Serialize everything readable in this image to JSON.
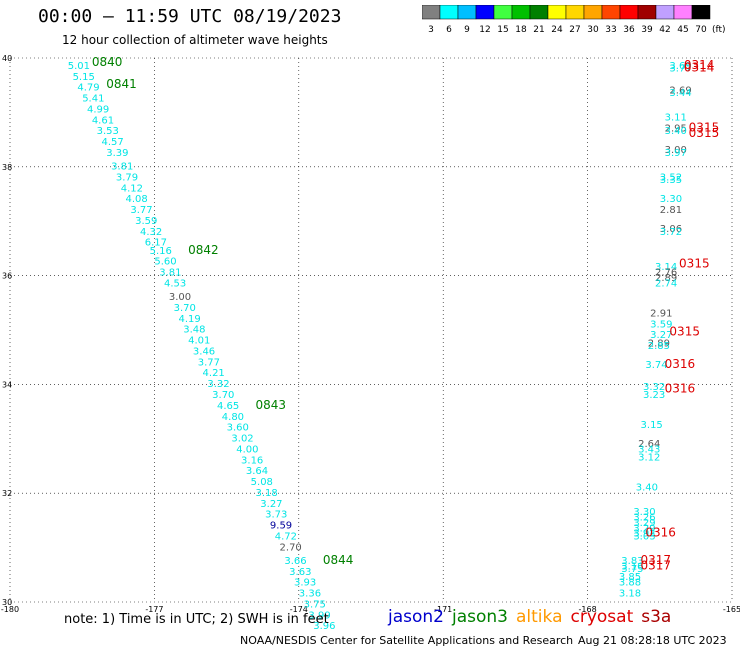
{
  "title": "00:00 – 11:59 UTC 08/19/2023",
  "subtitle": "12 hour collection of altimeter wave heights",
  "colorbar": {
    "labels": [
      "3",
      "6",
      "9",
      "12",
      "15",
      "18",
      "21",
      "24",
      "27",
      "30",
      "33",
      "36",
      "39",
      "42",
      "45",
      "70"
    ],
    "unit": "(ft)",
    "colors": [
      "#808080",
      "#00ffff",
      "#00bfff",
      "#0000ff",
      "#40ff40",
      "#00c000",
      "#008000",
      "#ffff00",
      "#ffd700",
      "#ffa500",
      "#ff4500",
      "#ff0000",
      "#a00000",
      "#c0a0ff",
      "#ff80ff",
      "#000000"
    ]
  },
  "footnote": "note:  1) Time is in UTC; 2) SWH is in feet",
  "satellites": [
    {
      "name": "jason2",
      "color": "#0000cc"
    },
    {
      "name": "jason3",
      "color": "#008000"
    },
    {
      "name": "altika",
      "color": "#ff9900"
    },
    {
      "name": "cryosat",
      "color": "#dd0000"
    },
    {
      "name": "s3a",
      "color": "#aa0000"
    }
  ],
  "credit": "NOAA/NESDIS Center for Satellite Applications and Research",
  "timestamp": "Aug 21 08:28:18 UTC 2023",
  "chart_data": {
    "type": "scatter",
    "xlim": [
      -180,
      -165
    ],
    "ylim": [
      30,
      40
    ],
    "xticks": [
      "-180",
      "-177",
      "-174",
      "-171",
      "-168",
      "-165"
    ],
    "yticks": [
      "30",
      "32",
      "34",
      "36",
      "38",
      "40"
    ],
    "grid": true,
    "colors": {
      "swh_cyan": "#00e5e5",
      "swh_gray": "#555555",
      "swh_blue": "#000099",
      "time_green": "#008000",
      "time_red": "#dd0000"
    },
    "swh_points": [
      {
        "lon": -178.8,
        "lat": 39.8,
        "v": "5.01",
        "c": "swh_cyan"
      },
      {
        "lon": -178.7,
        "lat": 39.6,
        "v": "5.15",
        "c": "swh_cyan"
      },
      {
        "lon": -178.6,
        "lat": 39.4,
        "v": "4.79",
        "c": "swh_cyan"
      },
      {
        "lon": -178.5,
        "lat": 39.2,
        "v": "5.41",
        "c": "swh_cyan"
      },
      {
        "lon": -178.4,
        "lat": 39.0,
        "v": "4.99",
        "c": "swh_cyan"
      },
      {
        "lon": -178.3,
        "lat": 38.8,
        "v": "4.61",
        "c": "swh_cyan"
      },
      {
        "lon": -178.2,
        "lat": 38.6,
        "v": "3.53",
        "c": "swh_cyan"
      },
      {
        "lon": -178.1,
        "lat": 38.4,
        "v": "4.57",
        "c": "swh_cyan"
      },
      {
        "lon": -178.0,
        "lat": 38.2,
        "v": "3.39",
        "c": "swh_cyan"
      },
      {
        "lon": -177.9,
        "lat": 37.95,
        "v": "3.81",
        "c": "swh_cyan"
      },
      {
        "lon": -177.8,
        "lat": 37.75,
        "v": "3.79",
        "c": "swh_cyan"
      },
      {
        "lon": -177.7,
        "lat": 37.55,
        "v": "4.12",
        "c": "swh_cyan"
      },
      {
        "lon": -177.6,
        "lat": 37.35,
        "v": "4.08",
        "c": "swh_cyan"
      },
      {
        "lon": -177.5,
        "lat": 37.15,
        "v": "3.77",
        "c": "swh_cyan"
      },
      {
        "lon": -177.4,
        "lat": 36.95,
        "v": "3.59",
        "c": "swh_cyan"
      },
      {
        "lon": -177.3,
        "lat": 36.75,
        "v": "4.32",
        "c": "swh_cyan"
      },
      {
        "lon": -177.2,
        "lat": 36.55,
        "v": "6.17",
        "c": "swh_cyan"
      },
      {
        "lon": -177.1,
        "lat": 36.4,
        "v": "5.16",
        "c": "swh_cyan"
      },
      {
        "lon": -177.0,
        "lat": 36.2,
        "v": "5.60",
        "c": "swh_cyan"
      },
      {
        "lon": -176.9,
        "lat": 36.0,
        "v": "3.81",
        "c": "swh_cyan"
      },
      {
        "lon": -176.8,
        "lat": 35.8,
        "v": "4.53",
        "c": "swh_cyan"
      },
      {
        "lon": -176.7,
        "lat": 35.55,
        "v": "3.00",
        "c": "swh_gray"
      },
      {
        "lon": -176.6,
        "lat": 35.35,
        "v": "3.70",
        "c": "swh_cyan"
      },
      {
        "lon": -176.5,
        "lat": 35.15,
        "v": "4.19",
        "c": "swh_cyan"
      },
      {
        "lon": -176.4,
        "lat": 34.95,
        "v": "3.48",
        "c": "swh_cyan"
      },
      {
        "lon": -176.3,
        "lat": 34.75,
        "v": "4.01",
        "c": "swh_cyan"
      },
      {
        "lon": -176.2,
        "lat": 34.55,
        "v": "3.46",
        "c": "swh_cyan"
      },
      {
        "lon": -176.1,
        "lat": 34.35,
        "v": "3.77",
        "c": "swh_cyan"
      },
      {
        "lon": -176.0,
        "lat": 34.15,
        "v": "4.21",
        "c": "swh_cyan"
      },
      {
        "lon": -175.9,
        "lat": 33.95,
        "v": "3.32",
        "c": "swh_cyan"
      },
      {
        "lon": -175.8,
        "lat": 33.75,
        "v": "3.70",
        "c": "swh_cyan"
      },
      {
        "lon": -175.7,
        "lat": 33.55,
        "v": "4.65",
        "c": "swh_cyan"
      },
      {
        "lon": -175.6,
        "lat": 33.35,
        "v": "4.80",
        "c": "swh_cyan"
      },
      {
        "lon": -175.5,
        "lat": 33.15,
        "v": "3.60",
        "c": "swh_cyan"
      },
      {
        "lon": -175.4,
        "lat": 32.95,
        "v": "3.02",
        "c": "swh_cyan"
      },
      {
        "lon": -175.3,
        "lat": 32.75,
        "v": "4.00",
        "c": "swh_cyan"
      },
      {
        "lon": -175.2,
        "lat": 32.55,
        "v": "3.16",
        "c": "swh_cyan"
      },
      {
        "lon": -175.1,
        "lat": 32.35,
        "v": "3.64",
        "c": "swh_cyan"
      },
      {
        "lon": -175.0,
        "lat": 32.15,
        "v": "5.08",
        "c": "swh_cyan"
      },
      {
        "lon": -174.9,
        "lat": 31.95,
        "v": "3.18",
        "c": "swh_cyan"
      },
      {
        "lon": -174.8,
        "lat": 31.75,
        "v": "3.27",
        "c": "swh_cyan"
      },
      {
        "lon": -174.7,
        "lat": 31.55,
        "v": "3.73",
        "c": "swh_cyan"
      },
      {
        "lon": -174.6,
        "lat": 31.35,
        "v": "9.59",
        "c": "swh_blue"
      },
      {
        "lon": -174.5,
        "lat": 31.15,
        "v": "4.72",
        "c": "swh_cyan"
      },
      {
        "lon": -174.4,
        "lat": 30.95,
        "v": "2.70",
        "c": "swh_gray"
      },
      {
        "lon": -174.3,
        "lat": 30.7,
        "v": "3.66",
        "c": "swh_cyan"
      },
      {
        "lon": -174.2,
        "lat": 30.5,
        "v": "3.63",
        "c": "swh_cyan"
      },
      {
        "lon": -174.1,
        "lat": 30.3,
        "v": "3.93",
        "c": "swh_cyan"
      },
      {
        "lon": -174.0,
        "lat": 30.1,
        "v": "3.36",
        "c": "swh_cyan"
      },
      {
        "lon": -173.9,
        "lat": 29.9,
        "v": "3.75",
        "c": "swh_cyan"
      },
      {
        "lon": -173.8,
        "lat": 29.7,
        "v": "3.99",
        "c": "swh_cyan"
      },
      {
        "lon": -173.7,
        "lat": 29.5,
        "v": "3.96",
        "c": "swh_cyan"
      },
      {
        "lon": -166.3,
        "lat": 39.8,
        "v": "3.69",
        "c": "swh_cyan"
      },
      {
        "lon": -166.3,
        "lat": 39.75,
        "v": "3.77",
        "c": "swh_cyan"
      },
      {
        "lon": -166.3,
        "lat": 39.35,
        "v": "2.69",
        "c": "swh_gray"
      },
      {
        "lon": -166.3,
        "lat": 39.3,
        "v": "3.44",
        "c": "swh_cyan"
      },
      {
        "lon": -166.4,
        "lat": 38.85,
        "v": "3.11",
        "c": "swh_cyan"
      },
      {
        "lon": -166.4,
        "lat": 38.65,
        "v": "2.95",
        "c": "swh_gray"
      },
      {
        "lon": -166.4,
        "lat": 38.6,
        "v": "3.40",
        "c": "swh_cyan"
      },
      {
        "lon": -166.4,
        "lat": 38.25,
        "v": "3.00",
        "c": "swh_gray"
      },
      {
        "lon": -166.4,
        "lat": 38.2,
        "v": "3.97",
        "c": "swh_cyan"
      },
      {
        "lon": -166.5,
        "lat": 37.75,
        "v": "3.52",
        "c": "swh_cyan"
      },
      {
        "lon": -166.5,
        "lat": 37.7,
        "v": "3.35",
        "c": "swh_cyan"
      },
      {
        "lon": -166.5,
        "lat": 37.35,
        "v": "3.30",
        "c": "swh_cyan"
      },
      {
        "lon": -166.5,
        "lat": 37.15,
        "v": "2.81",
        "c": "swh_gray"
      },
      {
        "lon": -166.5,
        "lat": 36.8,
        "v": "3.06",
        "c": "swh_gray"
      },
      {
        "lon": -166.5,
        "lat": 36.75,
        "v": "3.72",
        "c": "swh_cyan"
      },
      {
        "lon": -166.6,
        "lat": 36.1,
        "v": "3.14",
        "c": "swh_cyan"
      },
      {
        "lon": -166.6,
        "lat": 36.0,
        "v": "2.76",
        "c": "swh_gray"
      },
      {
        "lon": -166.6,
        "lat": 35.9,
        "v": "2.89",
        "c": "swh_gray"
      },
      {
        "lon": -166.6,
        "lat": 35.8,
        "v": "2.74",
        "c": "swh_cyan"
      },
      {
        "lon": -166.7,
        "lat": 35.25,
        "v": "2.91",
        "c": "swh_gray"
      },
      {
        "lon": -166.7,
        "lat": 35.05,
        "v": "3.59",
        "c": "swh_cyan"
      },
      {
        "lon": -166.7,
        "lat": 34.85,
        "v": "3.27",
        "c": "swh_cyan"
      },
      {
        "lon": -166.75,
        "lat": 34.7,
        "v": "2.89",
        "c": "swh_gray"
      },
      {
        "lon": -166.75,
        "lat": 34.65,
        "v": "2.85",
        "c": "swh_cyan"
      },
      {
        "lon": -166.8,
        "lat": 34.3,
        "v": "3.74",
        "c": "swh_cyan"
      },
      {
        "lon": -166.85,
        "lat": 33.9,
        "v": "3.32",
        "c": "swh_cyan"
      },
      {
        "lon": -166.85,
        "lat": 33.75,
        "v": "3.23",
        "c": "swh_cyan"
      },
      {
        "lon": -166.9,
        "lat": 33.2,
        "v": "3.15",
        "c": "swh_cyan"
      },
      {
        "lon": -166.95,
        "lat": 32.85,
        "v": "2.64",
        "c": "swh_gray"
      },
      {
        "lon": -166.95,
        "lat": 32.75,
        "v": "3.43",
        "c": "swh_cyan"
      },
      {
        "lon": -166.95,
        "lat": 32.6,
        "v": "3.12",
        "c": "swh_cyan"
      },
      {
        "lon": -167.0,
        "lat": 32.05,
        "v": "3.40",
        "c": "swh_cyan"
      },
      {
        "lon": -167.05,
        "lat": 31.6,
        "v": "3.30",
        "c": "swh_cyan"
      },
      {
        "lon": -167.05,
        "lat": 31.5,
        "v": "3.26",
        "c": "swh_cyan"
      },
      {
        "lon": -167.05,
        "lat": 31.4,
        "v": "3.29",
        "c": "swh_cyan"
      },
      {
        "lon": -167.05,
        "lat": 31.3,
        "v": "3.29",
        "c": "swh_cyan"
      },
      {
        "lon": -167.05,
        "lat": 31.2,
        "v": "3.92",
        "c": "swh_cyan"
      },
      {
        "lon": -167.05,
        "lat": 31.15,
        "v": "3.03",
        "c": "swh_cyan"
      },
      {
        "lon": -167.3,
        "lat": 30.7,
        "v": "3.83",
        "c": "swh_cyan"
      },
      {
        "lon": -167.3,
        "lat": 30.6,
        "v": "3.16",
        "c": "swh_cyan"
      },
      {
        "lon": -167.3,
        "lat": 30.55,
        "v": "3.75",
        "c": "swh_cyan"
      },
      {
        "lon": -167.35,
        "lat": 30.4,
        "v": "3.85",
        "c": "swh_cyan"
      },
      {
        "lon": -167.35,
        "lat": 30.3,
        "v": "3.88",
        "c": "swh_cyan"
      },
      {
        "lon": -167.35,
        "lat": 30.1,
        "v": "3.18",
        "c": "swh_cyan"
      }
    ],
    "time_labels": [
      {
        "lon": -178.3,
        "lat": 39.85,
        "t": "0840",
        "c": "time_green"
      },
      {
        "lon": -178.0,
        "lat": 39.45,
        "t": "0841",
        "c": "time_green"
      },
      {
        "lon": -176.3,
        "lat": 36.4,
        "t": "0842",
        "c": "time_green"
      },
      {
        "lon": -174.9,
        "lat": 33.55,
        "t": "0843",
        "c": "time_green"
      },
      {
        "lon": -173.5,
        "lat": 30.7,
        "t": "0844",
        "c": "time_green"
      },
      {
        "lon": -166.0,
        "lat": 39.8,
        "t": "0314",
        "c": "time_red"
      },
      {
        "lon": -166.0,
        "lat": 39.75,
        "t": "0314",
        "c": "time_red"
      },
      {
        "lon": -165.9,
        "lat": 38.65,
        "t": "0315",
        "c": "time_red"
      },
      {
        "lon": -165.9,
        "lat": 38.55,
        "t": "0315",
        "c": "time_red"
      },
      {
        "lon": -166.1,
        "lat": 36.15,
        "t": "0315",
        "c": "time_red"
      },
      {
        "lon": -166.3,
        "lat": 34.9,
        "t": "0315",
        "c": "time_red"
      },
      {
        "lon": -166.4,
        "lat": 34.3,
        "t": "0316",
        "c": "time_red"
      },
      {
        "lon": -166.4,
        "lat": 33.85,
        "t": "0316",
        "c": "time_red"
      },
      {
        "lon": -166.8,
        "lat": 31.2,
        "t": "0316",
        "c": "time_red"
      },
      {
        "lon": -166.9,
        "lat": 30.7,
        "t": "0317",
        "c": "time_red"
      },
      {
        "lon": -166.9,
        "lat": 30.6,
        "t": "0317",
        "c": "time_red"
      }
    ]
  }
}
